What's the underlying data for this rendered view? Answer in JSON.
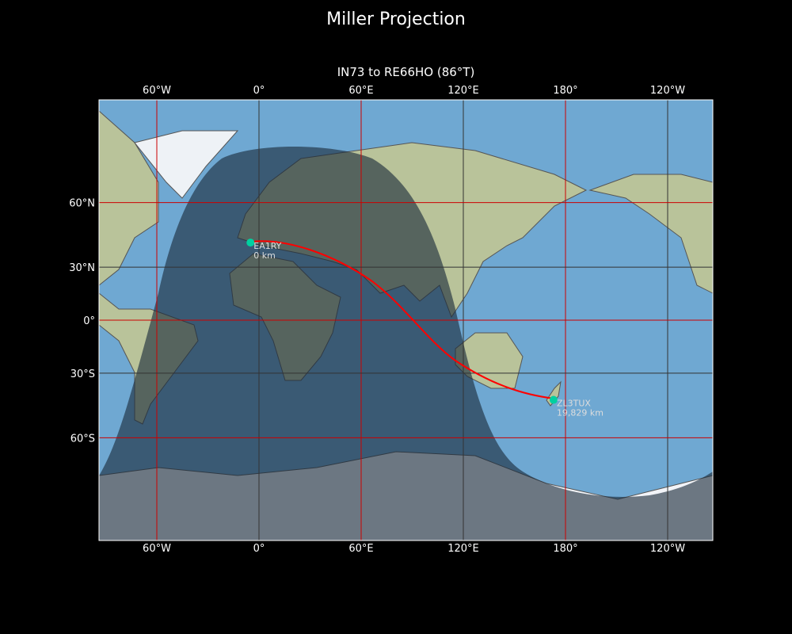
{
  "title": "Miller Projection",
  "subtitle": "IN73 to RE66HO (86°T)",
  "map": {
    "projection": "Miller",
    "central_longitude": 86,
    "lon_ticks": [
      "60°W",
      "0°",
      "60°E",
      "120°E",
      "180°",
      "120°W"
    ],
    "lat_ticks": [
      "60°N",
      "30°N",
      "0°",
      "30°S",
      "60°S"
    ],
    "colors": {
      "path": "#ff0000",
      "station": "#00d0a0",
      "grid_red": "#cc0000",
      "grid_dark": "#333333",
      "night": "#1a2a3a"
    }
  },
  "stations": [
    {
      "call": "EA1RY",
      "distance": "0 km",
      "lat": 42.5,
      "lon": -5
    },
    {
      "call": "ZL3TUX",
      "distance": "19,829 km",
      "lat": -43.5,
      "lon": 173
    }
  ]
}
